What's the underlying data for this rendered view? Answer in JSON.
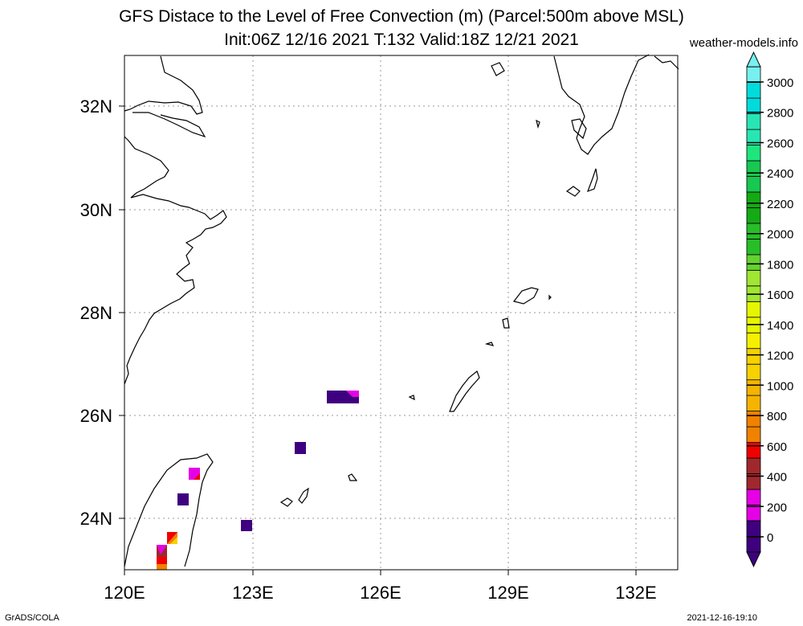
{
  "header": {
    "title_line1": "GFS Distace to the Level of Free Convection (m) (Parcel:500m above MSL)",
    "title_line2": "Init:06Z 12/16 2021 T:132 Valid:18Z 12/21 2021",
    "site": "weather-models.info"
  },
  "axes": {
    "x_labels": [
      "120E",
      "123E",
      "126E",
      "129E",
      "132E"
    ],
    "y_labels": [
      "32N",
      "30N",
      "28N",
      "26N",
      "24N"
    ]
  },
  "colorbar": {
    "labels": [
      "3000",
      "2800",
      "2600",
      "2400",
      "2200",
      "2000",
      "1800",
      "1600",
      "1400",
      "1200",
      "1000",
      "800",
      "600",
      "400",
      "200",
      "0"
    ],
    "colors": [
      "#3f007f",
      "#e600e6",
      "#a0282d",
      "#f00000",
      "#f08200",
      "#f4b400",
      "#f5d200",
      "#f5f000",
      "#e6f500",
      "#a0e632",
      "#64d230",
      "#28be28",
      "#14aa14",
      "#18c850",
      "#1ee67c",
      "#28e6b4",
      "#00dcdc",
      "#78f0f0"
    ]
  },
  "footer": {
    "left": "GrADS/COLA",
    "right": "2021-12-16-19:10"
  }
}
